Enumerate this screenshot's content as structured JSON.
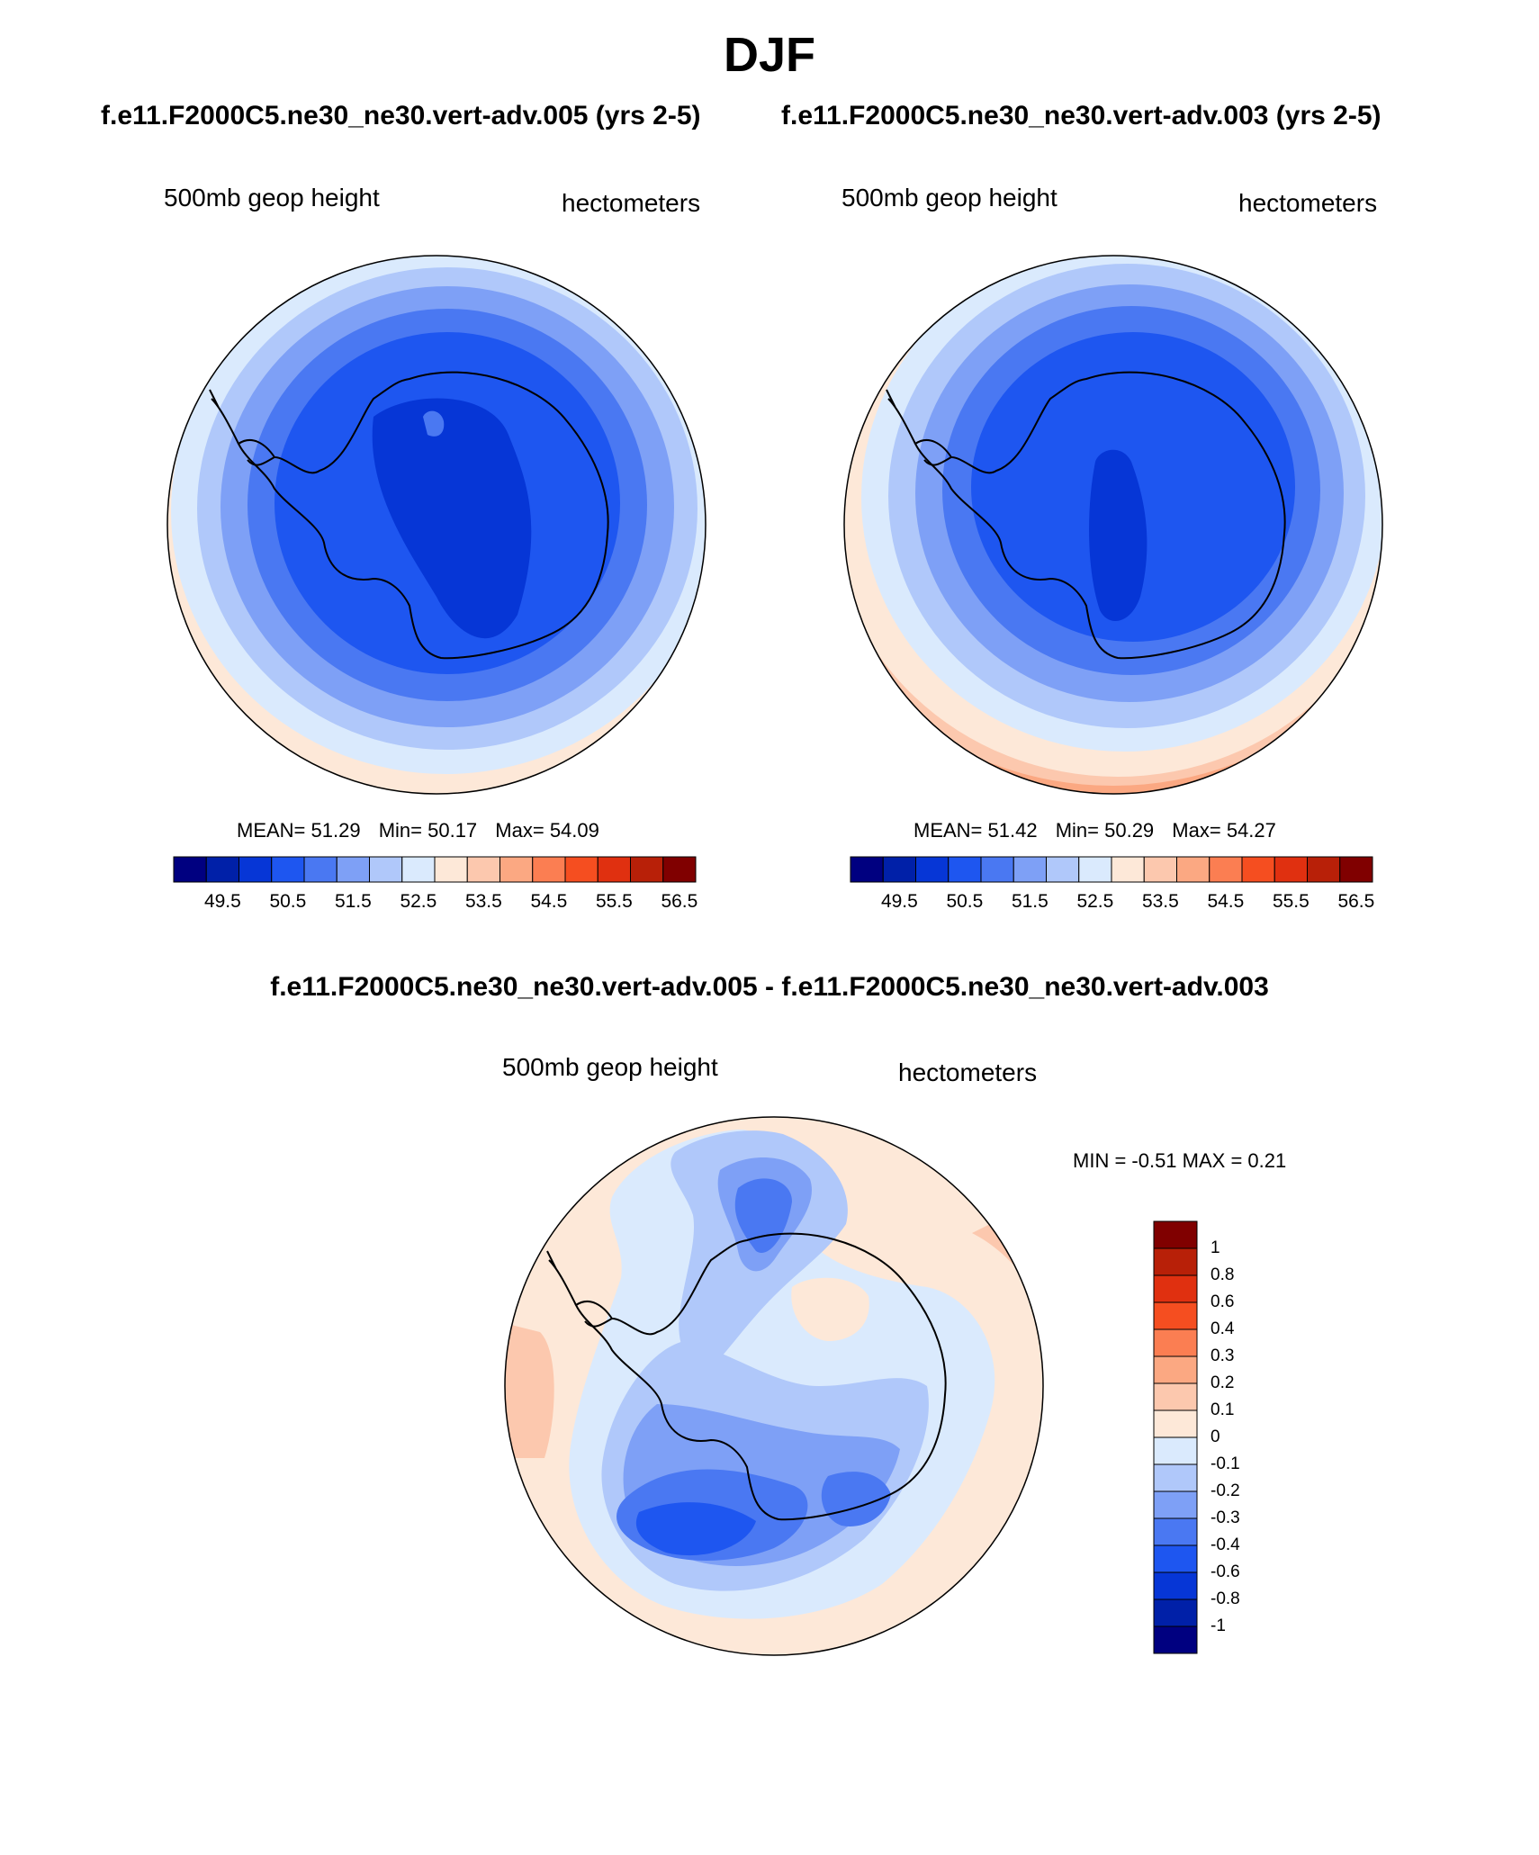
{
  "title": "DJF",
  "case_titles": [
    "f.e11.F2000C5.ne30_ne30.vert-adv.005 (yrs 2-5)",
    "f.e11.F2000C5.ne30_ne30.vert-adv.003 (yrs 2-5)"
  ],
  "panels": [
    {
      "left_label": "500mb geop height",
      "right_label": "hectometers",
      "stats": {
        "mean": "MEAN=  51.29",
        "min": "Min=  50.17",
        "max": "Max=  54.09"
      }
    },
    {
      "left_label": "500mb geop height",
      "right_label": "hectometers",
      "stats": {
        "mean": "MEAN=  51.42",
        "min": "Min=  50.29",
        "max": "Max=  54.27"
      }
    }
  ],
  "colorbar": {
    "colors": [
      "#000080",
      "#0020a8",
      "#0636d6",
      "#1e56f0",
      "#4a78f2",
      "#7ea0f6",
      "#b0c8fa",
      "#daeafd",
      "#fde8d8",
      "#fcc8ae",
      "#fba882",
      "#fb7e52",
      "#f54e20",
      "#e03010",
      "#b82008",
      "#800000"
    ],
    "tick_labels": [
      "49.5",
      "50.5",
      "51.5",
      "52.5",
      "53.5",
      "54.5",
      "55.5",
      "56.5"
    ]
  },
  "difference": {
    "title": "f.e11.F2000C5.ne30_ne30.vert-adv.005 - f.e11.F2000C5.ne30_ne30.vert-adv.003",
    "left_label": "500mb geop height",
    "right_label": "hectometers",
    "minmax": "MIN =  -0.51 MAX =   0.21",
    "colorbar": {
      "colors_top_to_bottom": [
        "#800000",
        "#b82008",
        "#e03010",
        "#f54e20",
        "#fb7e52",
        "#fba882",
        "#fcc8ae",
        "#fde8d8",
        "#daeafd",
        "#b0c8fa",
        "#7ea0f6",
        "#4a78f2",
        "#1e56f0",
        "#0636d6",
        "#0020a8",
        "#000080"
      ],
      "tick_labels": [
        "1",
        "0.8",
        "0.6",
        "0.4",
        "0.3",
        "0.2",
        "0.1",
        "0",
        "-0.1",
        "-0.2",
        "-0.3",
        "-0.4",
        "-0.6",
        "-0.8",
        "-1"
      ]
    }
  }
}
